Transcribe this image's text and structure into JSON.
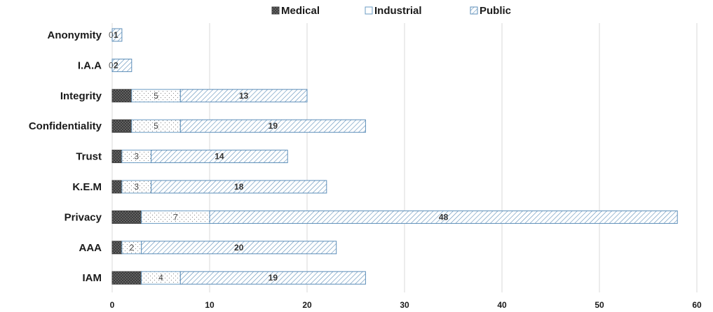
{
  "chart_data": {
    "type": "bar",
    "orientation": "horizontal",
    "stacked": true,
    "title": "",
    "xlabel": "",
    "ylabel": "",
    "xlim": [
      0,
      60
    ],
    "xticks": [
      "0",
      "10",
      "20",
      "30",
      "40",
      "50",
      "60"
    ],
    "grid": true,
    "legend_position": "top",
    "categories": [
      "Anonymity",
      "I.A.A",
      "Integrity",
      "Confidentiality",
      "Trust",
      "K.E.M",
      "Privacy",
      "AAA",
      "IAM"
    ],
    "series": [
      {
        "name": "Medical",
        "values": [
          0,
          0,
          2,
          2,
          1,
          1,
          3,
          1,
          3
        ],
        "color": "#3c3c3c",
        "pattern": "dots-dark"
      },
      {
        "name": "Industrial",
        "values": [
          0,
          0,
          5,
          5,
          3,
          3,
          7,
          2,
          4
        ],
        "color": "#6a9bc3",
        "pattern": "dots-light"
      },
      {
        "name": "Public",
        "values": [
          1,
          2,
          13,
          19,
          14,
          18,
          48,
          20,
          19
        ],
        "color": "#5b8db8",
        "pattern": "diagonal-hatch"
      }
    ],
    "data_labels": {
      "Medical": [
        "0",
        "0",
        "",
        "",
        "",
        "",
        "",
        "",
        ""
      ],
      "Industrial": [
        "",
        "",
        "5",
        "5",
        "3",
        "3",
        "7",
        "2",
        "4"
      ],
      "Public": [
        "1",
        "2",
        "13",
        "19",
        "14",
        "18",
        "48",
        "20",
        "19"
      ]
    }
  }
}
